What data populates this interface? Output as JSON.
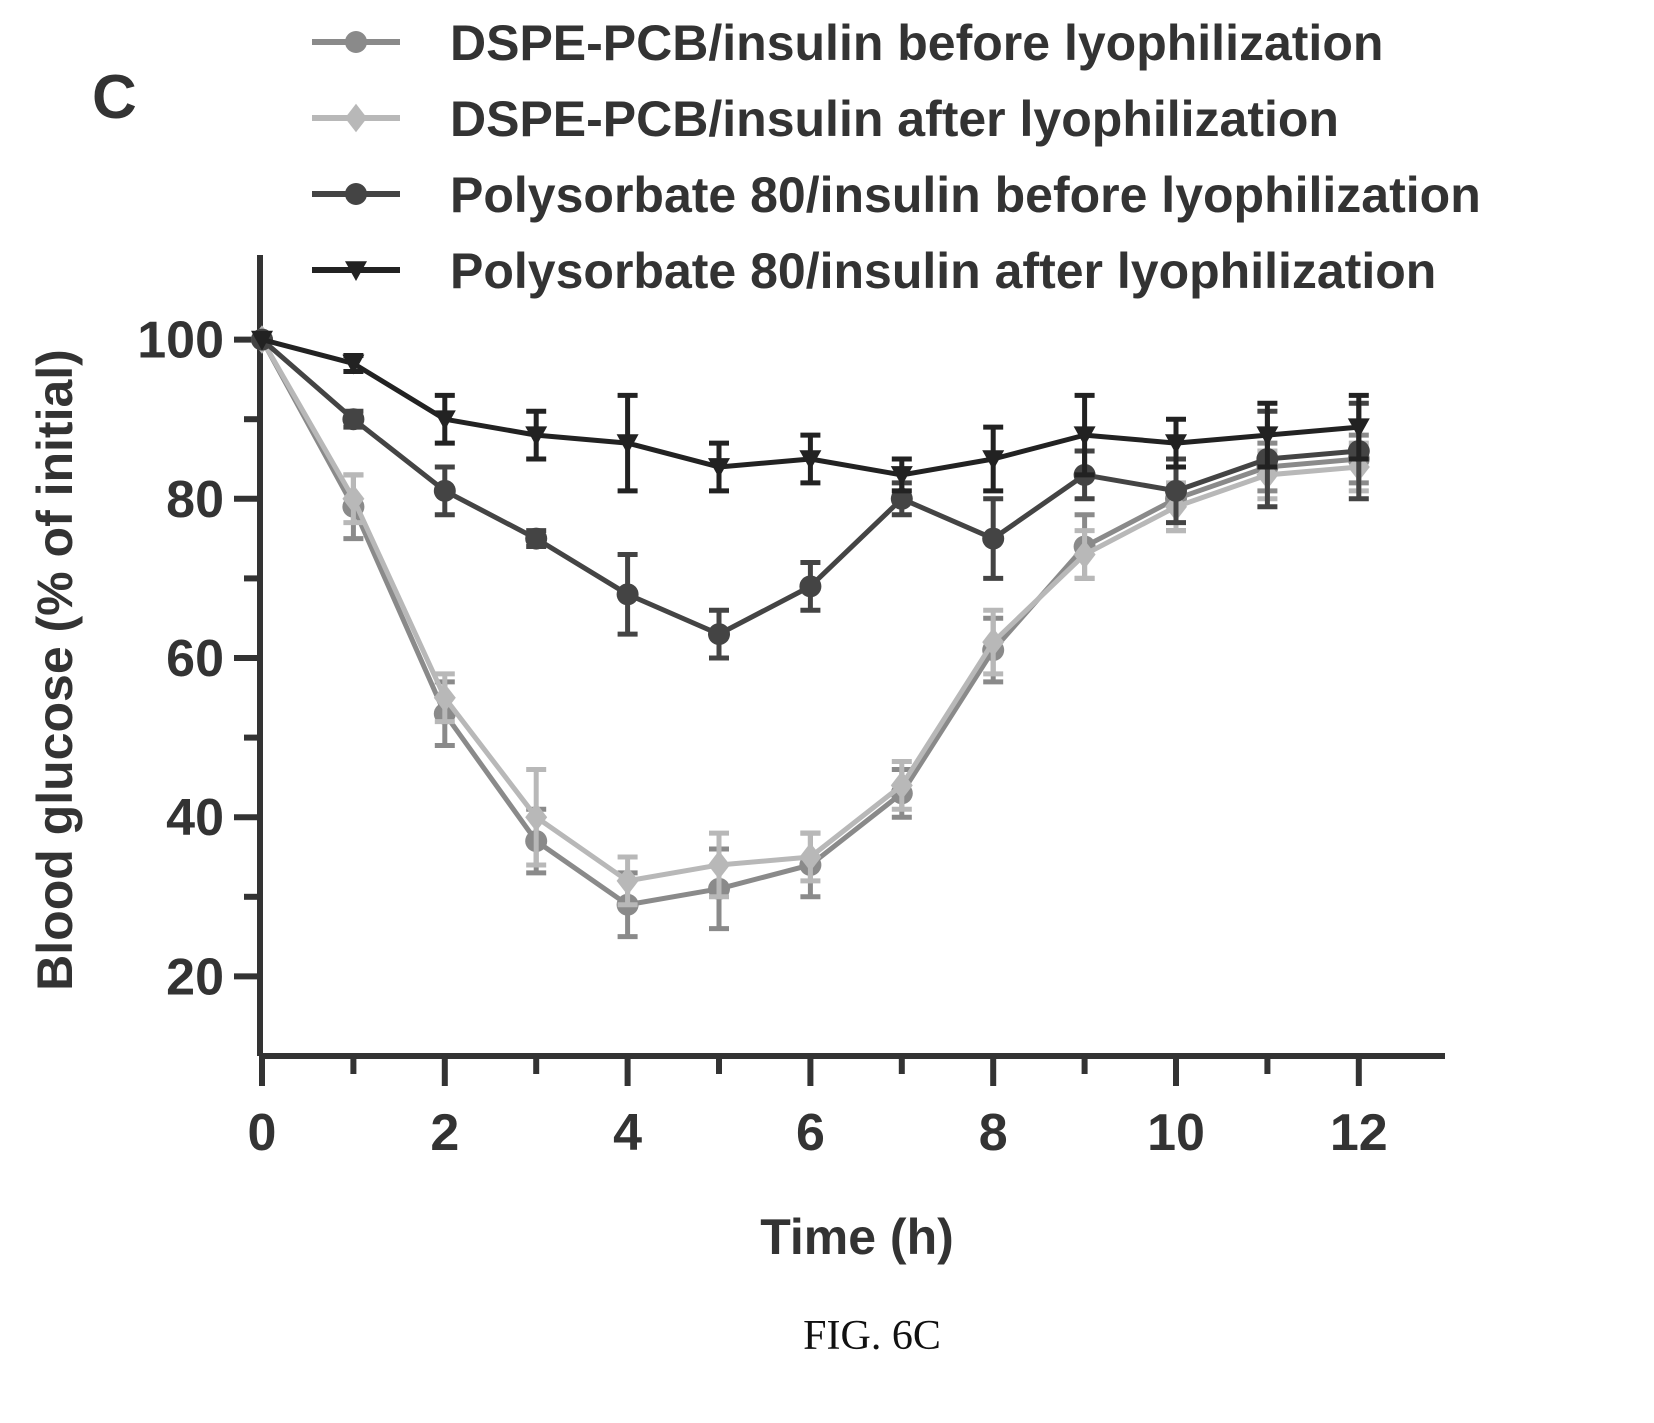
{
  "panel_label": "C",
  "caption": "FIG. 6C",
  "chart_data": {
    "type": "line",
    "title": "",
    "xlabel": "Time (h)",
    "ylabel": "Blood glucose (% of initial)",
    "xlim": [
      0,
      13
    ],
    "ylim": [
      10,
      110
    ],
    "xticks": [
      0,
      2,
      4,
      6,
      8,
      10,
      12
    ],
    "yticks": [
      20,
      40,
      60,
      80,
      100
    ],
    "legend_position": "top",
    "grid": false,
    "x": [
      0,
      1,
      2,
      3,
      4,
      5,
      6,
      7,
      8,
      9,
      10,
      11,
      12
    ],
    "series": [
      {
        "name": "DSPE-PCB/insulin before lyophilization",
        "marker": "circle",
        "color": "#8a8a8a",
        "values": [
          100,
          79,
          53,
          37,
          29,
          31,
          34,
          43,
          61,
          74,
          80,
          84,
          85
        ],
        "error": [
          0,
          4,
          4,
          4,
          4,
          5,
          4,
          3,
          4,
          4,
          4,
          3,
          3
        ]
      },
      {
        "name": "DSPE-PCB/insulin after lyophilization",
        "marker": "diamond",
        "color": "#b8b8b8",
        "values": [
          100,
          80,
          55,
          40,
          32,
          34,
          35,
          44,
          62,
          73,
          79,
          83,
          84
        ],
        "error": [
          0,
          3,
          3,
          6,
          3,
          4,
          3,
          3,
          4,
          3,
          3,
          3,
          3
        ]
      },
      {
        "name": "Polysorbate 80/insulin before lyophilization",
        "marker": "circle",
        "color": "#444444",
        "values": [
          100,
          90,
          81,
          75,
          68,
          63,
          69,
          80,
          75,
          83,
          81,
          85,
          86
        ],
        "error": [
          0,
          1,
          3,
          1,
          5,
          3,
          3,
          2,
          5,
          3,
          4,
          6,
          6
        ]
      },
      {
        "name": "Polysorbate 80/insulin after lyophilization",
        "marker": "triangle-down",
        "color": "#222222",
        "values": [
          100,
          97,
          90,
          88,
          87,
          84,
          85,
          83,
          85,
          88,
          87,
          88,
          89
        ],
        "error": [
          0,
          1,
          3,
          3,
          6,
          3,
          3,
          2,
          4,
          5,
          3,
          4,
          4
        ]
      }
    ]
  }
}
